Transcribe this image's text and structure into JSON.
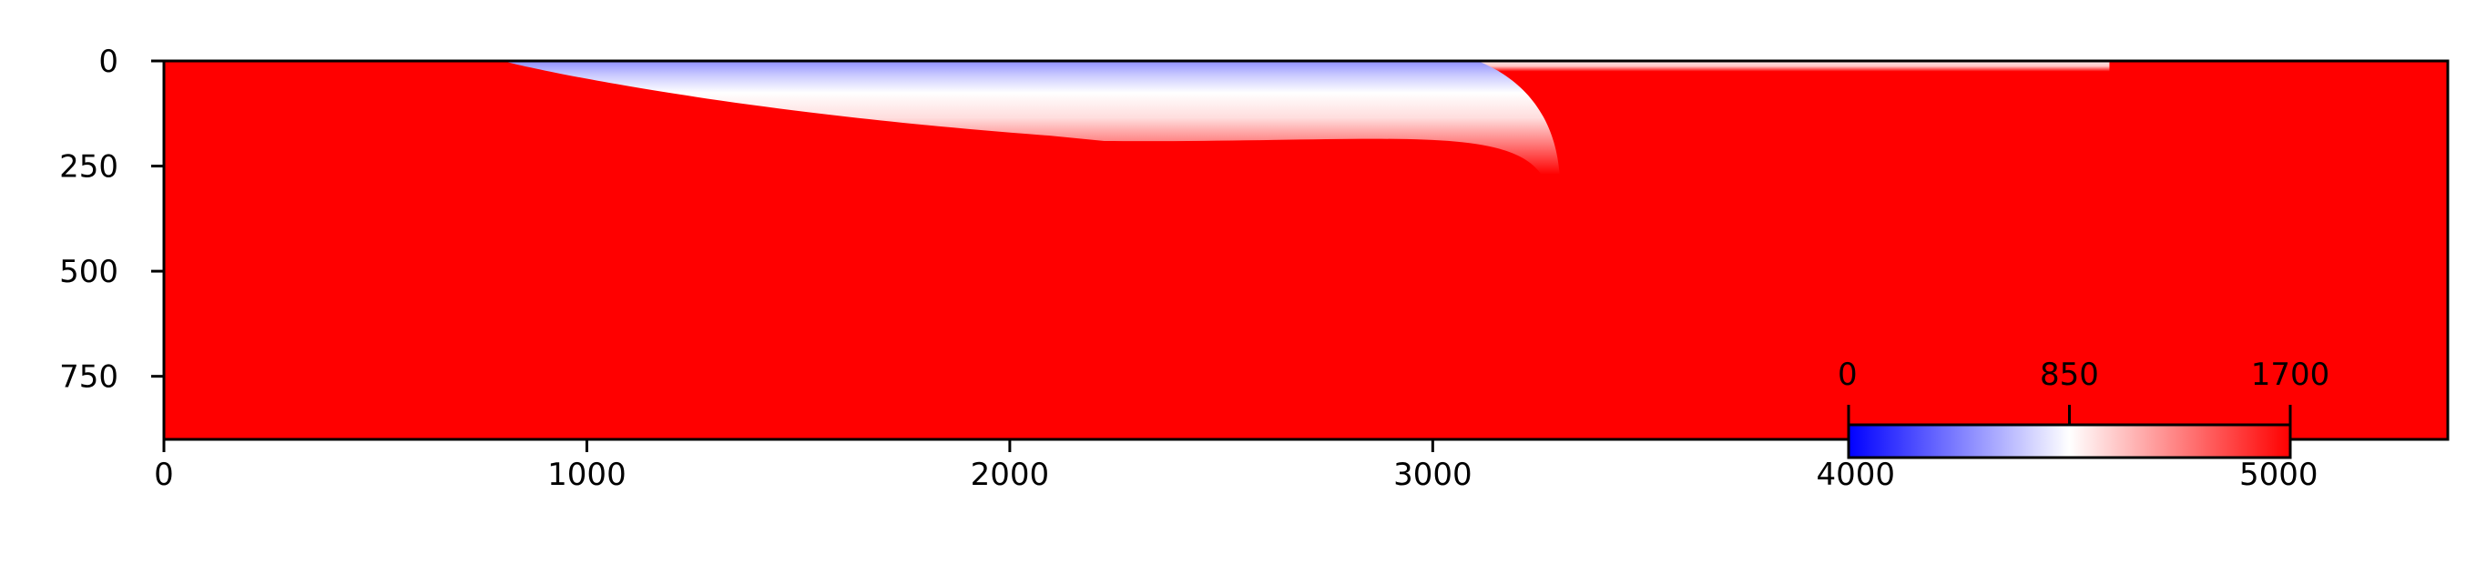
{
  "chart_data": {
    "type": "heatmap",
    "title": "",
    "xlabel": "",
    "ylabel": "",
    "xlim": [
      0,
      5400
    ],
    "ylim": [
      900,
      0
    ],
    "xticks": [
      0,
      1000,
      2000,
      3000,
      4000,
      5000
    ],
    "xtick_labels": [
      "0",
      "1000",
      "2000",
      "3000",
      "4000",
      "5000"
    ],
    "yticks": [
      0,
      250,
      500,
      750
    ],
    "ytick_labels": [
      "0",
      "250",
      "500",
      "750"
    ],
    "grid": false,
    "colormap": {
      "name": "bwr",
      "low_color": "#0000ff",
      "mid_color": "#ffffff",
      "high_color": "#ff0000",
      "vmin": 0,
      "vmax": 1700
    },
    "colorbar": {
      "placement": "inset-bottom-right",
      "orientation": "horizontal",
      "ticks": [
        0,
        850,
        1700
      ],
      "tick_labels": [
        "0",
        "850",
        "1700"
      ]
    },
    "field": {
      "background_value": 1700,
      "features": [
        {
          "description": "low-value layer near the top",
          "x_start": 800,
          "x_end": 3300,
          "min_value": 0,
          "max_depth": 270
        },
        {
          "description": "thin pale strip at the surface",
          "x_start": 3100,
          "x_end": 4600,
          "value": 1400,
          "depth": 25
        }
      ]
    }
  }
}
